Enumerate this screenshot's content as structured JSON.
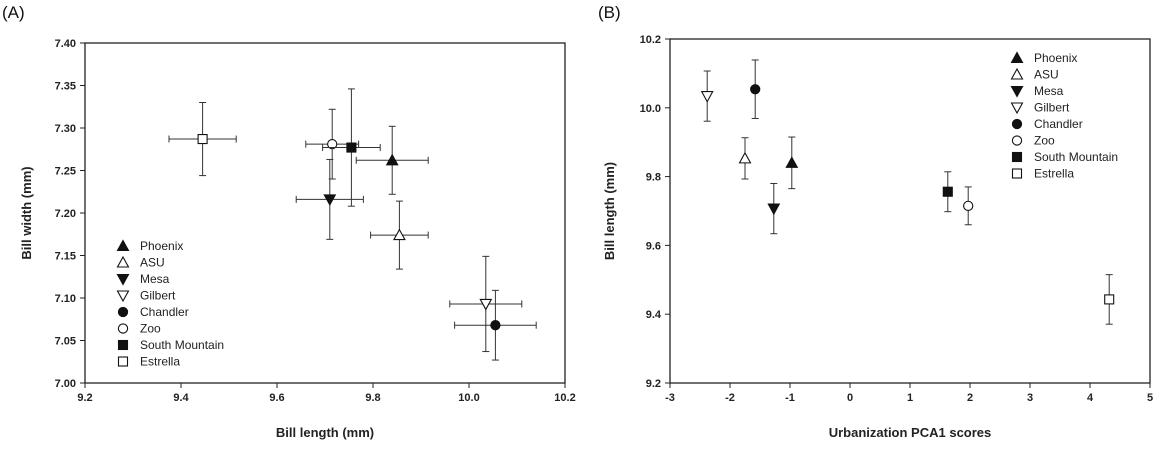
{
  "chart_data": [
    {
      "type": "scatter",
      "panel_label": "(A)",
      "xlabel": "Bill length (mm)",
      "ylabel": "Bill width (mm)",
      "xlim": [
        9.2,
        10.2
      ],
      "ylim": [
        7.0,
        7.4
      ],
      "xticks": [
        "9.2",
        "9.4",
        "9.6",
        "9.8",
        "10.0",
        "10.2"
      ],
      "yticks": [
        "7.00",
        "7.05",
        "7.10",
        "7.15",
        "7.20",
        "7.25",
        "7.30",
        "7.35",
        "7.40"
      ],
      "grid": false,
      "legend_position": "bottom-left",
      "series": [
        {
          "name": "Phoenix",
          "marker": "triangle-up-filled",
          "x": 9.84,
          "y": 7.262,
          "x_err": 0.075,
          "y_err": 0.04
        },
        {
          "name": "ASU",
          "marker": "triangle-up-open",
          "x": 9.855,
          "y": 7.174,
          "x_err": 0.06,
          "y_err": 0.04
        },
        {
          "name": "Mesa",
          "marker": "triangle-down-filled",
          "x": 9.71,
          "y": 7.216,
          "x_err": 0.07,
          "y_err": 0.047
        },
        {
          "name": "Gilbert",
          "marker": "triangle-down-open",
          "x": 10.035,
          "y": 7.093,
          "x_err": 0.075,
          "y_err": 0.056
        },
        {
          "name": "Chandler",
          "marker": "circle-filled",
          "x": 10.055,
          "y": 7.068,
          "x_err": 0.085,
          "y_err": 0.041
        },
        {
          "name": "Zoo",
          "marker": "circle-open",
          "x": 9.715,
          "y": 7.281,
          "x_err": 0.055,
          "y_err": 0.041
        },
        {
          "name": "South Mountain",
          "marker": "square-filled",
          "x": 9.755,
          "y": 7.277,
          "x_err": 0.06,
          "y_err": 0.069
        },
        {
          "name": "Estrella",
          "marker": "square-open",
          "x": 9.445,
          "y": 7.287,
          "x_err": 0.07,
          "y_err": 0.043
        }
      ]
    },
    {
      "type": "scatter",
      "panel_label": "(B)",
      "xlabel": "Urbanization PCA1 scores",
      "ylabel": "Bill length (mm)",
      "xlim": [
        -3,
        5
      ],
      "ylim": [
        9.2,
        10.2
      ],
      "xticks": [
        "-3",
        "-2",
        "-1",
        "0",
        "1",
        "2",
        "3",
        "4",
        "5"
      ],
      "yticks": [
        "9.2",
        "9.4",
        "9.6",
        "9.8",
        "10.0",
        "10.2"
      ],
      "grid": false,
      "legend_position": "top-right",
      "series": [
        {
          "name": "Phoenix",
          "marker": "triangle-up-filled",
          "x": -0.97,
          "y": 9.84,
          "y_err": 0.075
        },
        {
          "name": "ASU",
          "marker": "triangle-up-open",
          "x": -1.75,
          "y": 9.853,
          "y_err": 0.06
        },
        {
          "name": "Mesa",
          "marker": "triangle-down-filled",
          "x": -1.27,
          "y": 9.707,
          "y_err": 0.073
        },
        {
          "name": "Gilbert",
          "marker": "triangle-down-open",
          "x": -2.38,
          "y": 10.034,
          "y_err": 0.073
        },
        {
          "name": "Chandler",
          "marker": "circle-filled",
          "x": -1.58,
          "y": 10.054,
          "y_err": 0.085
        },
        {
          "name": "Zoo",
          "marker": "circle-open",
          "x": 1.97,
          "y": 9.715,
          "y_err": 0.055
        },
        {
          "name": "South Mountain",
          "marker": "square-filled",
          "x": 1.63,
          "y": 9.756,
          "y_err": 0.058
        },
        {
          "name": "Estrella",
          "marker": "square-open",
          "x": 4.32,
          "y": 9.443,
          "y_err": 0.072
        }
      ]
    }
  ]
}
